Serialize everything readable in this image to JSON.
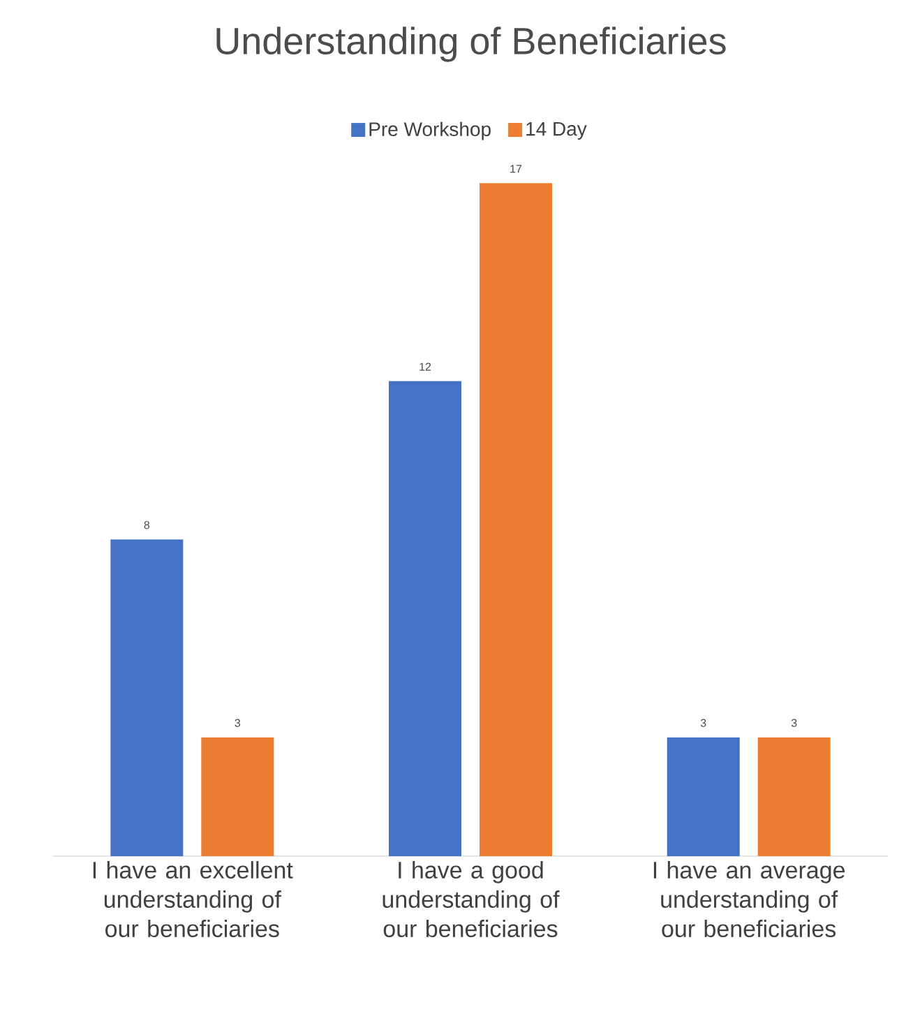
{
  "chart_data": {
    "type": "bar",
    "title": "Understanding of Beneficiaries",
    "categories": [
      "I have an excellent understanding of our beneficiaries",
      "I have a good understanding of our beneficiaries",
      "I have an average understanding of our beneficiaries"
    ],
    "series": [
      {
        "name": "Pre Workshop",
        "color": "#4472c4",
        "values": [
          8,
          12,
          3
        ]
      },
      {
        "name": "14 Day",
        "color": "#ed7d31",
        "values": [
          3,
          17,
          3
        ]
      }
    ],
    "data_labels": true,
    "legend": "top"
  }
}
